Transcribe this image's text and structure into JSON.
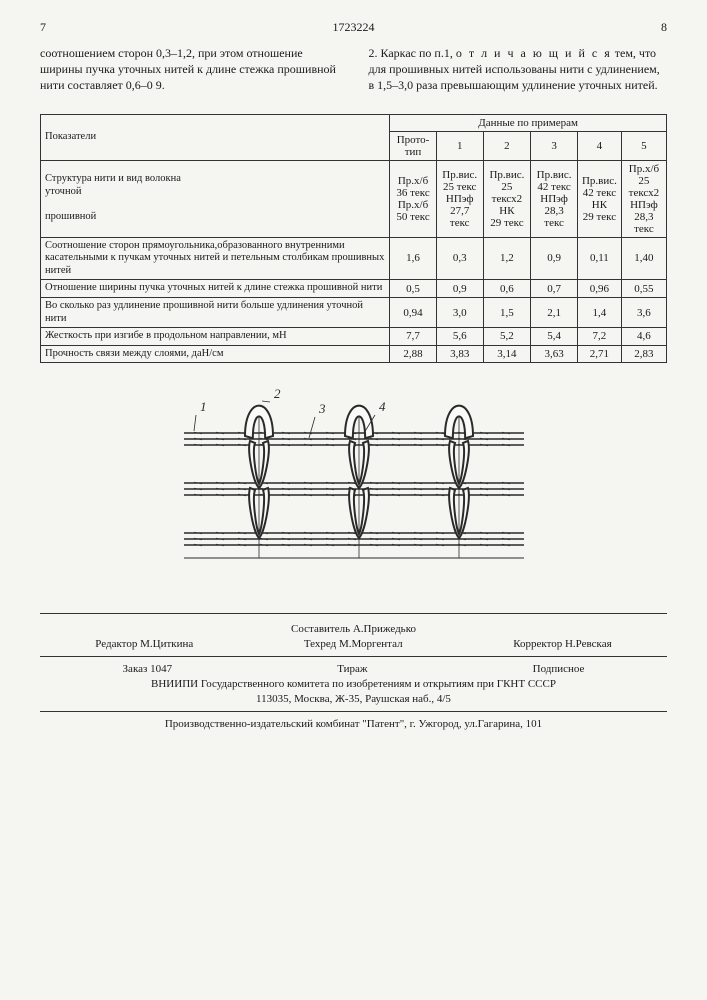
{
  "header": {
    "page_left": "7",
    "doc_number": "1723224",
    "page_right": "8"
  },
  "col_left": "соотношением сторон 0,3–1,2, при этом от­ношение ширины пучка уточных нитей к длине стежка прошивной нити составляет 0,6–0 9.",
  "col_right_prefix": "2. Каркас по п.1, ",
  "col_right_spaced": "о т л и ч а ю щ и й с я",
  "col_right_suffix": " тем, что для прошивных нитей использова­ны нити с удлинением, в 1,5–3,0 раза превы­шающим удлинение уточных нитей.",
  "table": {
    "headers": {
      "indicators": "Показатели",
      "data_by_examples": "Данные по примерам",
      "prototype": "Прото­тип",
      "cols": [
        "1",
        "2",
        "3",
        "4",
        "5"
      ]
    },
    "rows": [
      {
        "label": "Структура нити и вид волокна\nуточной\n\nпрошивной",
        "cells": [
          "Пр.х/б\n36 текс\nПр.х/б\n50 текс",
          "Пр.вис.\n25 текс\nНПэф\n27,7 текс",
          "Пр.вис.\n25 тексх2\nНК\n29 текс",
          "Пр.вис.\n42 текс\nНПэф\n28,3 текс",
          "Пр.вис.\n42 текс\nНК\n29 текс",
          "Пр.х/б\n25 тексх2\nНПэф\n28,3 текс"
        ]
      },
      {
        "label": "Соотношение сторон прямо­угольника,образованного внутренними касательными к пучкам уточных нитей и пе­тельным столбикам прошив­ных нитей",
        "cells": [
          "1,6",
          "0,3",
          "1,2",
          "0,9",
          "0,11",
          "1,40"
        ]
      },
      {
        "label": "Отношение ширины пучка уточных нитей к длине стежка прошивной нити",
        "cells": [
          "0,5",
          "0,9",
          "0,6",
          "0,7",
          "0,96",
          "0,55"
        ]
      },
      {
        "label": "Во сколько раз удлинение прошивной нити больше уд­линения уточной нити",
        "cells": [
          "0,94",
          "3,0",
          "1,5",
          "2,1",
          "1,4",
          "3,6"
        ]
      },
      {
        "label": "Жесткость при изгибе в про­дольном направлении, мН",
        "cells": [
          "7,7",
          "5,6",
          "5,2",
          "5,4",
          "7,2",
          "4,6"
        ]
      },
      {
        "label": "Прочность связи между слоя­ми, даН/см",
        "cells": [
          "2,88",
          "3,83",
          "3,14",
          "3,63",
          "2,71",
          "2,83"
        ]
      }
    ]
  },
  "diagram": {
    "labels": [
      "1",
      "2",
      "3",
      "4"
    ],
    "stroke": "#2a2a2a",
    "fill": "#fafaf8"
  },
  "footer": {
    "editor": "Редактор М.Циткина",
    "compiler": "Составитель А.Прижедько",
    "tech": "Техред М.Моргентал",
    "corrector": "Корректор Н.Ревская",
    "order": "Заказ 1047",
    "tirazh": "Тираж",
    "podpisnoe": "Подписное",
    "line1": "ВНИИПИ Государственного комитета по изобретениям и открытиям при ГКНТ СССР",
    "line2": "113035, Москва, Ж-35, Раушская наб., 4/5",
    "line3": "Производственно-издательский комбинат \"Патент\", г. Ужгород, ул.Гагарина, 101"
  }
}
